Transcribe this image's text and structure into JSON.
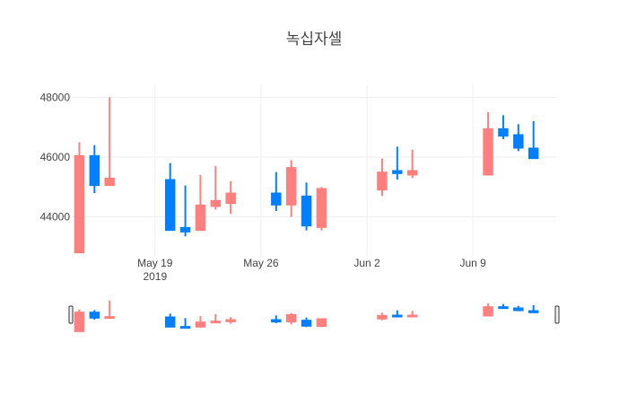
{
  "chart_data": {
    "type": "candlestick",
    "title": "녹십자셀",
    "xlabel": "",
    "ylabel": "",
    "ylim": [
      42700,
      48400
    ],
    "y_ticks": [
      44000,
      46000,
      48000
    ],
    "y_tick_labels": [
      "44000",
      "46000",
      "48000"
    ],
    "x_range": [
      "2019-05-14",
      "2019-06-14"
    ],
    "x_ticks": [
      "2019-05-19",
      "2019-05-26",
      "2019-06-02",
      "2019-06-09"
    ],
    "x_tick_labels": [
      {
        "line1": "May 19",
        "line2": "2019"
      },
      {
        "line1": "May 26",
        "line2": ""
      },
      {
        "line1": "Jun 2",
        "line2": ""
      },
      {
        "line1": "Jun 9",
        "line2": ""
      }
    ],
    "grid": true,
    "rangeslider": true,
    "colors": {
      "increasing": "#ff7f7f",
      "decreasing": "#007fff"
    },
    "candles": [
      {
        "date": "2019-05-14",
        "open": 42800,
        "high": 46500,
        "low": 42800,
        "close": 46050
      },
      {
        "date": "2019-05-15",
        "open": 46050,
        "high": 46400,
        "low": 44800,
        "close": 45050
      },
      {
        "date": "2019-05-16",
        "open": 45050,
        "high": 48000,
        "low": 45050,
        "close": 45300
      },
      {
        "date": "2019-05-20",
        "open": 45250,
        "high": 45800,
        "low": 43550,
        "close": 43550
      },
      {
        "date": "2019-05-21",
        "open": 43650,
        "high": 45050,
        "low": 43350,
        "close": 43500
      },
      {
        "date": "2019-05-22",
        "open": 43550,
        "high": 45400,
        "low": 43550,
        "close": 44400
      },
      {
        "date": "2019-05-23",
        "open": 44350,
        "high": 45700,
        "low": 44250,
        "close": 44550
      },
      {
        "date": "2019-05-24",
        "open": 44450,
        "high": 45200,
        "low": 44100,
        "close": 44800
      },
      {
        "date": "2019-05-27",
        "open": 44800,
        "high": 45500,
        "low": 44200,
        "close": 44400
      },
      {
        "date": "2019-05-28",
        "open": 44400,
        "high": 45900,
        "low": 44000,
        "close": 45650
      },
      {
        "date": "2019-05-29",
        "open": 44700,
        "high": 45150,
        "low": 43550,
        "close": 43700
      },
      {
        "date": "2019-05-30",
        "open": 43650,
        "high": 45000,
        "low": 43550,
        "close": 44950
      },
      {
        "date": "2019-06-03",
        "open": 44900,
        "high": 45950,
        "low": 44700,
        "close": 45500
      },
      {
        "date": "2019-06-04",
        "open": 45550,
        "high": 46350,
        "low": 45250,
        "close": 45450
      },
      {
        "date": "2019-06-05",
        "open": 45400,
        "high": 46250,
        "low": 45300,
        "close": 45550
      },
      {
        "date": "2019-06-10",
        "open": 45400,
        "high": 47500,
        "low": 45400,
        "close": 46950
      },
      {
        "date": "2019-06-11",
        "open": 46950,
        "high": 47400,
        "low": 46600,
        "close": 46700
      },
      {
        "date": "2019-06-12",
        "open": 46750,
        "high": 47100,
        "low": 46200,
        "close": 46300
      },
      {
        "date": "2019-06-13",
        "open": 46300,
        "high": 47200,
        "low": 45950,
        "close": 45950
      }
    ]
  }
}
